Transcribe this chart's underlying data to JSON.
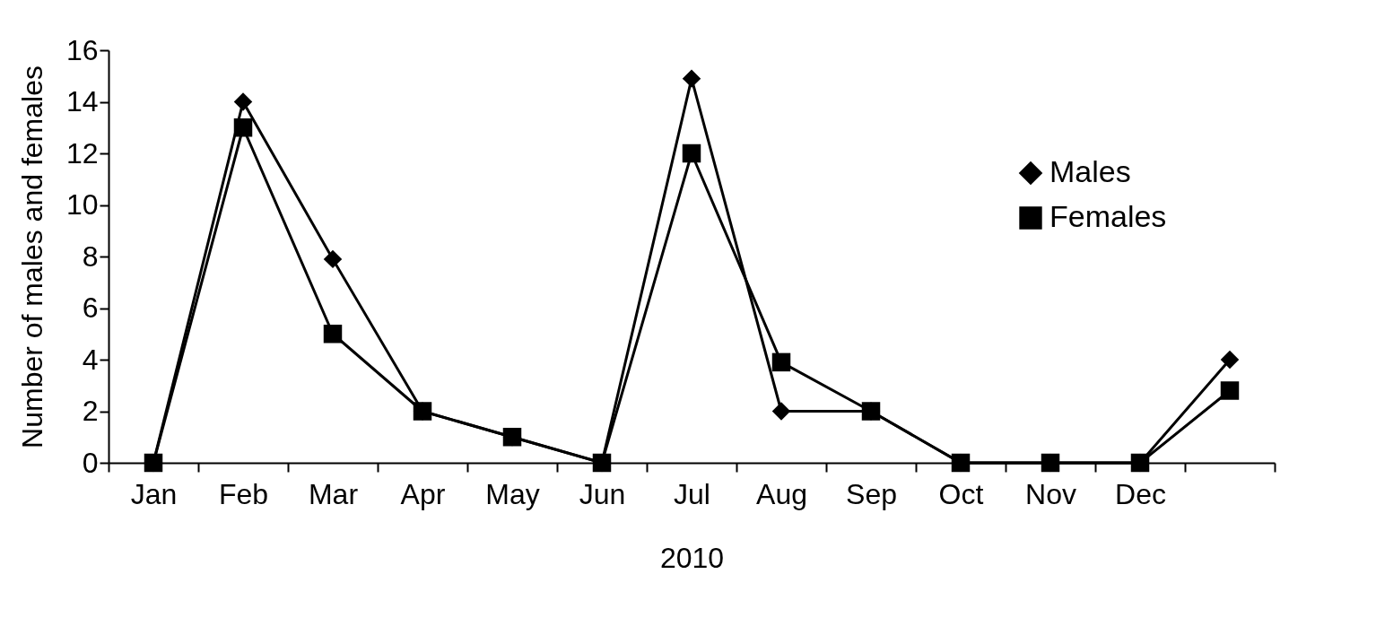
{
  "chart_data": {
    "type": "line",
    "xlabel": "2010",
    "ylabel": "Number of males and females",
    "categories": [
      "Jan",
      "Feb",
      "Mar",
      "Apr",
      "May",
      "Jun",
      "Jul",
      "Aug",
      "Sep",
      "Oct",
      "Nov",
      "Dec",
      null
    ],
    "series": [
      {
        "name": "Males",
        "color": "#000000",
        "marker": "diamond",
        "values": [
          0,
          14,
          7.9,
          2,
          1,
          0,
          14.9,
          2,
          2,
          0,
          0,
          0,
          4
        ]
      },
      {
        "name": "Females",
        "color": "#000000",
        "marker": "square",
        "values": [
          0,
          13,
          5,
          2,
          1,
          0,
          12,
          3.9,
          2,
          0,
          0,
          0,
          2.8
        ]
      }
    ],
    "ylim": [
      0,
      16
    ],
    "yticks": [
      0,
      2,
      4,
      6,
      8,
      10,
      12,
      14,
      16
    ],
    "grid": false,
    "legend": "top right",
    "line_style": "solid"
  }
}
